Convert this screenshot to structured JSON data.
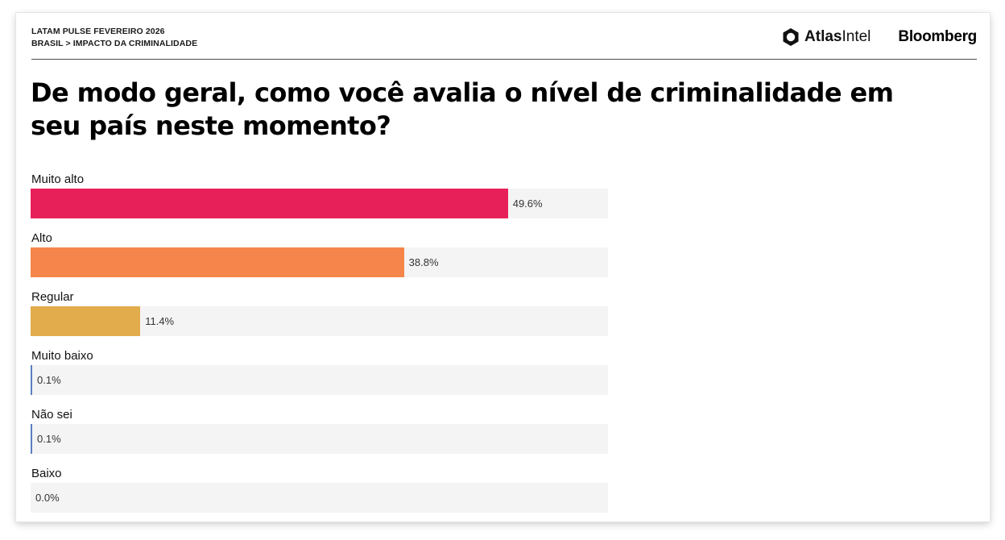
{
  "header": {
    "kicker_line1": "LATAM PULSE FEVEREIRO 2026",
    "kicker_line2": "BRASIL > IMPACTO DA CRIMINALIDADE",
    "logo_atlas_bold": "Atlas",
    "logo_atlas_light": "Intel",
    "logo_bloomberg": "Bloomberg"
  },
  "chart_data": {
    "type": "bar",
    "orientation": "horizontal",
    "title": "De modo geral, como você avalia o nível de criminalidade em seu país neste momento?",
    "xlim": [
      0,
      60
    ],
    "grid": false,
    "legend": "none",
    "categories": [
      "Muito alto",
      "Alto",
      "Regular",
      "Muito baixo",
      "Não sei",
      "Baixo"
    ],
    "values": [
      49.6,
      38.8,
      11.4,
      0.1,
      0.1,
      0.0
    ],
    "value_labels": [
      "49.6%",
      "38.8%",
      "11.4%",
      "0.1%",
      "0.1%",
      "0.0%"
    ],
    "colors": [
      "#e8205a",
      "#f5854a",
      "#e2ab4c",
      "#5b7fc0",
      "#5b7fc0",
      "#5b7fc0"
    ],
    "track_color": "#f4f4f4"
  }
}
